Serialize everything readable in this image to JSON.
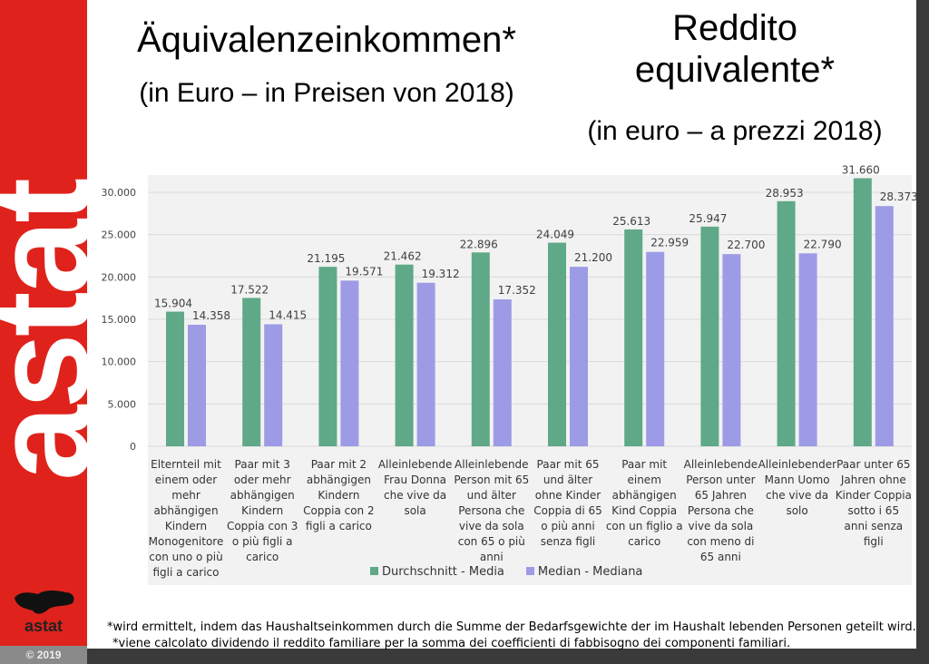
{
  "brand": {
    "side_word": "astat",
    "logo_text": "astat",
    "copyright": "© 2019",
    "color": "#df231c"
  },
  "titles": {
    "de_title": "Äquivalenzeinkommen*",
    "de_subtitle": "(in Euro – in Preisen von 2018)",
    "it_title": "Reddito equivalente*",
    "it_subtitle": "(in euro – a prezzi 2018)"
  },
  "chart_data": {
    "type": "bar",
    "ylim": [
      0,
      35000
    ],
    "yticks": [
      "0",
      "5.000",
      "10.000",
      "15.000",
      "20.000",
      "25.000",
      "30.000"
    ],
    "grid": true,
    "legend_position": "bottom",
    "categories": [
      "Elternteil mit einem oder mehr abhängigen Kindern Monogenitore con uno o più figli a carico",
      "Paar mit 3 oder mehr abhängigen Kindern Coppia con 3 o più figli a carico",
      "Paar mit 2 abhängigen Kindern Coppia con 2 figli a carico",
      "Alleinlebende Frau Donna che vive da sola",
      "Alleinlebende Person mit 65 und älter Persona che vive da sola con 65 o più anni",
      "Paar mit 65 und älter ohne Kinder Coppia di 65 o più anni senza figli",
      "Paar mit einem abhängigen Kind Coppia con un figlio a carico",
      "Alleinlebende Person unter 65 Jahren Persona che vive da sola con meno di 65 anni",
      "Alleinlebender Mann Uomo che vive da solo",
      "Paar unter 65 Jahren ohne Kinder Coppia sotto i 65 anni senza figli"
    ],
    "series": [
      {
        "name": "Durchschnitt - Media",
        "color": "#5fa988",
        "values": [
          15904,
          17522,
          21195,
          21462,
          22896,
          24049,
          25613,
          25947,
          28953,
          31660
        ],
        "labels": [
          "15.904",
          "17.522",
          "21.195",
          "21.462",
          "22.896",
          "24.049",
          "25.613",
          "25.947",
          "28.953",
          "31.660"
        ]
      },
      {
        "name": "Median - Mediana",
        "color": "#9d9be6",
        "values": [
          14358,
          14415,
          19571,
          19312,
          17352,
          21200,
          22959,
          22700,
          22790,
          28373
        ],
        "labels": [
          "14.358",
          "14.415",
          "19.571",
          "19.312",
          "17.352",
          "21.200",
          "22.959",
          "22.700",
          "22.790",
          "28.373"
        ]
      }
    ]
  },
  "footnotes": [
    "*wird ermittelt, indem das Haushaltseinkommen durch die Summe der Bedarfsgewichte der im Haushalt lebenden Personen geteilt wird.",
    "*viene calcolato dividendo il reddito familiare per la somma dei coefficienti di fabbisogno dei componenti familiari."
  ]
}
